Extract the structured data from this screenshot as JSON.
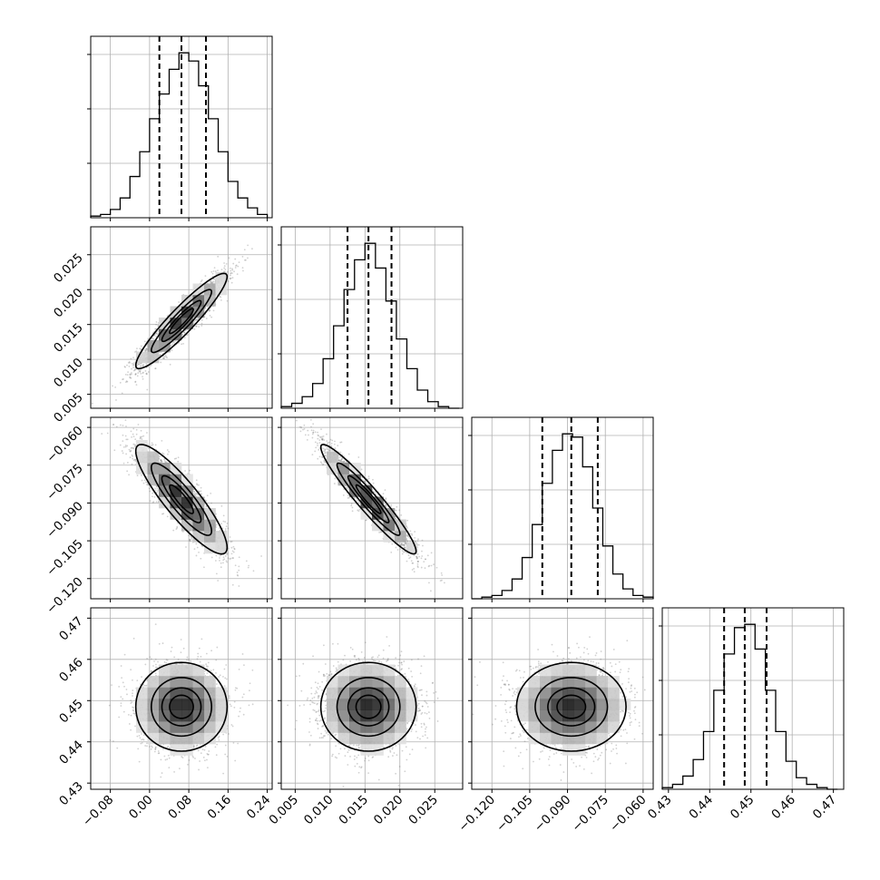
{
  "chart_data": {
    "type": "corner",
    "colors": {
      "hist": "#000000",
      "grid": "#b0b0b0",
      "scatter": "#7a7a7a",
      "background": "#ffffff"
    },
    "grid": true,
    "parameters": [
      {
        "range": [
          -0.12,
          0.25
        ],
        "ticks": [
          "−0.08",
          "0.00",
          "0.08",
          "0.16",
          "0.24"
        ],
        "tick_values": [
          -0.08,
          0.0,
          0.08,
          0.16,
          0.24
        ],
        "quantiles": [
          0.02,
          0.065,
          0.115
        ],
        "histogram": {
          "bins": [
            -0.12,
            -0.1,
            -0.08,
            -0.06,
            -0.04,
            -0.02,
            0.0,
            0.02,
            0.04,
            0.06,
            0.08,
            0.1,
            0.12,
            0.14,
            0.16,
            0.18,
            0.2,
            0.22,
            0.24
          ],
          "counts": [
            1,
            2,
            5,
            12,
            25,
            40,
            60,
            75,
            90,
            100,
            95,
            80,
            60,
            40,
            22,
            12,
            6,
            2
          ]
        }
      },
      {
        "range": [
          0.003,
          0.029
        ],
        "ticks": [
          "0.005",
          "0.010",
          "0.015",
          "0.020",
          "0.025"
        ],
        "tick_values": [
          0.005,
          0.01,
          0.015,
          0.02,
          0.025
        ],
        "quantiles": [
          0.0125,
          0.0155,
          0.0188
        ],
        "histogram": {
          "bins": [
            0.003,
            0.0045,
            0.006,
            0.0075,
            0.009,
            0.0105,
            0.012,
            0.0135,
            0.015,
            0.0165,
            0.018,
            0.0195,
            0.021,
            0.0225,
            0.024,
            0.0255,
            0.027,
            0.0285
          ],
          "counts": [
            1,
            3,
            7,
            15,
            30,
            50,
            72,
            90,
            100,
            85,
            65,
            42,
            24,
            11,
            4,
            1,
            0
          ]
        }
      },
      {
        "range": [
          -0.128,
          -0.056
        ],
        "ticks": [
          "−0.120",
          "−0.105",
          "−0.090",
          "−0.075",
          "−0.060"
        ],
        "tick_values": [
          -0.12,
          -0.105,
          -0.09,
          -0.075,
          -0.06
        ],
        "quantiles": [
          -0.1,
          -0.0885,
          -0.078
        ],
        "histogram": {
          "bins": [
            -0.128,
            -0.124,
            -0.12,
            -0.116,
            -0.112,
            -0.108,
            -0.104,
            -0.1,
            -0.096,
            -0.092,
            -0.088,
            -0.084,
            -0.08,
            -0.076,
            -0.072,
            -0.068,
            -0.064,
            -0.06,
            -0.056
          ],
          "counts": [
            0,
            1,
            2,
            5,
            12,
            25,
            45,
            70,
            90,
            100,
            98,
            80,
            55,
            32,
            15,
            6,
            2,
            1
          ]
        }
      },
      {
        "range": [
          0.4285,
          0.4725
        ],
        "ticks": [
          "0.43",
          "0.44",
          "0.45",
          "0.46",
          "0.47"
        ],
        "tick_values": [
          0.43,
          0.44,
          0.45,
          0.46,
          0.47
        ],
        "quantiles": [
          0.4435,
          0.4485,
          0.4538
        ],
        "histogram": {
          "bins": [
            0.4285,
            0.431,
            0.4335,
            0.436,
            0.4385,
            0.441,
            0.4435,
            0.446,
            0.4485,
            0.451,
            0.4535,
            0.456,
            0.4585,
            0.461,
            0.4635,
            0.466,
            0.4685,
            0.471
          ],
          "counts": [
            1,
            3,
            8,
            18,
            35,
            60,
            82,
            98,
            100,
            85,
            60,
            35,
            17,
            7,
            3,
            1,
            0
          ]
        }
      }
    ],
    "pairs": [
      {
        "x": 0,
        "y": 1,
        "mean": [
          0.065,
          0.0155
        ],
        "sd": [
          0.045,
          0.0033
        ],
        "rho": 0.93
      },
      {
        "x": 0,
        "y": 2,
        "mean": [
          0.065,
          -0.0885
        ],
        "sd": [
          0.045,
          0.0105
        ],
        "rho": -0.88
      },
      {
        "x": 1,
        "y": 2,
        "mean": [
          0.0155,
          -0.0885
        ],
        "sd": [
          0.0033,
          0.0105
        ],
        "rho": -0.95
      },
      {
        "x": 0,
        "y": 3,
        "mean": [
          0.065,
          0.4485
        ],
        "sd": [
          0.045,
          0.0052
        ],
        "rho": 0.0
      },
      {
        "x": 1,
        "y": 3,
        "mean": [
          0.0155,
          0.4485
        ],
        "sd": [
          0.0033,
          0.0052
        ],
        "rho": 0.0
      },
      {
        "x": 2,
        "y": 3,
        "mean": [
          -0.0885,
          0.4485
        ],
        "sd": [
          0.0105,
          0.0052
        ],
        "rho": 0.0
      }
    ],
    "contour_levels_sigma": [
      0.5,
      1.0,
      1.5,
      2.0
    ]
  }
}
